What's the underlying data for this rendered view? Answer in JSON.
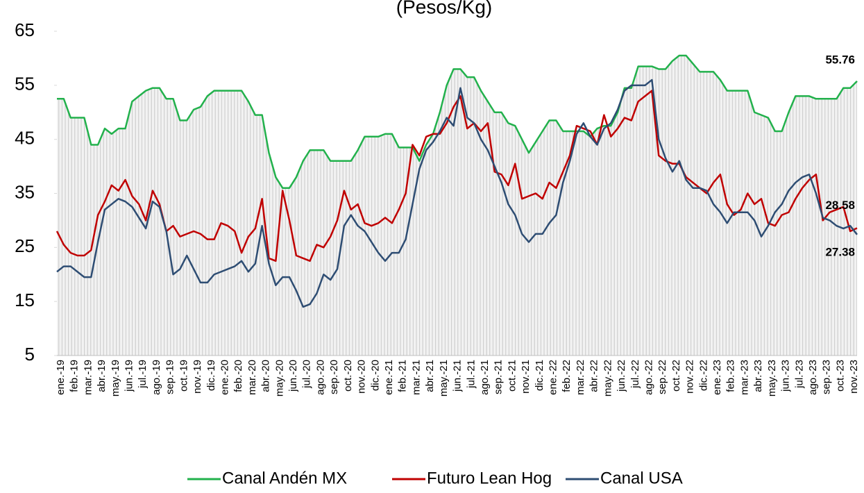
{
  "chart_data": {
    "type": "line",
    "title": "(Pesos/Kg)",
    "categories": [
      "ene.-19",
      null,
      "feb.-19",
      null,
      "mar.-19",
      null,
      "abr.-19",
      null,
      "may.-19",
      null,
      "jun.-19",
      null,
      "jul.-19",
      null,
      "ago.-19",
      null,
      "sep.-19",
      null,
      "oct.-19",
      null,
      "nov.-19",
      null,
      "dic.-19",
      null,
      "ene.-20",
      null,
      "feb.-20",
      null,
      "mar.-20",
      null,
      "abr.-20",
      null,
      "may.-20",
      null,
      "jun.-20",
      null,
      "jul.-20",
      null,
      "ago.-20",
      null,
      "sep.-20",
      null,
      "oct.-20",
      null,
      "nov.-20",
      null,
      "dic.-20",
      null,
      "ene.-21",
      null,
      "feb.-21",
      null,
      "mar.-21",
      null,
      "abr.-21",
      null,
      "may.-21",
      null,
      "jun.-21",
      null,
      "jul.-21",
      null,
      "ago.-21",
      null,
      "sep.-21",
      null,
      "oct.-21",
      null,
      "nov.-21",
      null,
      "dic.-21",
      null,
      "ene.-22",
      null,
      "feb.-22",
      null,
      "mar.-22",
      null,
      "abr.-22",
      null,
      "may.-22",
      null,
      "jun.-22",
      null,
      "jul.-22",
      null,
      "ago.-22",
      null,
      "sep.-22",
      null,
      "oct.-22",
      null,
      "nov.-22",
      null,
      "dic.-22",
      null,
      "ene.-23",
      null,
      "feb.-23",
      null,
      "mar.-23",
      null,
      "abr.-23",
      null,
      "may.-23",
      null,
      "jun.-23",
      null,
      "jul.-23",
      null,
      "ago.-23",
      null,
      "sep.-23",
      null,
      "oct.-23",
      null,
      "nov.-23",
      null
    ],
    "series": [
      {
        "name": "Canal Andén MX",
        "color": "#22b14c",
        "values": [
          52.5,
          52.5,
          49,
          49,
          49,
          44,
          44,
          47,
          46,
          47,
          47,
          52,
          53,
          54,
          54.5,
          54.5,
          52.5,
          52.5,
          48.5,
          48.5,
          50.5,
          51,
          53,
          54,
          54,
          54,
          54,
          54,
          52,
          49.5,
          49.5,
          42.5,
          38,
          36,
          36,
          38,
          41,
          43,
          43,
          43,
          41,
          41,
          41,
          41,
          43,
          45.5,
          45.5,
          45.5,
          46,
          46,
          43.5,
          43.5,
          43.5,
          41,
          44,
          46,
          50,
          55,
          58,
          58,
          56.5,
          56.5,
          54,
          52,
          50,
          50,
          48,
          47.5,
          45,
          42.5,
          44.5,
          46.5,
          48.5,
          48.5,
          46.5,
          46.5,
          46.5,
          46.5,
          45.5,
          47,
          47.5,
          47.5,
          50,
          54.5,
          54.5,
          58.5,
          58.5,
          58.5,
          58,
          58,
          59.5,
          60.5,
          60.5,
          59,
          57.5,
          57.5,
          57.5,
          56,
          54,
          54,
          54,
          54,
          50,
          49.5,
          49,
          46.5,
          46.5,
          50,
          53,
          53,
          53,
          52.5,
          52.5,
          52.5,
          52.5,
          54.5,
          54.5,
          55.76
        ]
      },
      {
        "name": "Futuro Lean Hog",
        "color": "#c00000",
        "values": [
          28,
          25.5,
          24,
          23.5,
          23.5,
          24.5,
          31,
          33.5,
          36.5,
          35.5,
          37.5,
          34.5,
          33,
          30,
          35.5,
          33,
          28,
          29,
          27,
          27.5,
          28,
          27.5,
          26.5,
          26.5,
          29.5,
          29,
          28,
          24,
          27,
          28.5,
          34,
          23,
          22.5,
          35.5,
          30,
          23.5,
          23,
          22.5,
          25.5,
          25,
          27,
          30,
          35.5,
          32,
          33,
          29.5,
          29,
          29.5,
          30.5,
          29.5,
          32,
          35,
          44,
          42,
          45.5,
          46,
          46,
          48,
          51,
          53,
          47,
          48,
          46.5,
          48,
          39,
          38.5,
          36.5,
          40.5,
          34,
          34.5,
          35,
          34,
          37,
          36,
          39,
          42,
          47.5,
          47,
          46.5,
          44,
          49.5,
          45.5,
          47,
          49,
          48.5,
          52,
          53,
          54,
          42,
          41,
          40.5,
          40.5,
          38,
          37,
          36,
          35,
          37,
          38.5,
          33,
          31,
          32,
          35,
          33,
          34,
          29.5,
          29,
          31,
          31.5,
          34,
          36,
          37.5,
          38.5,
          30,
          31.5,
          32,
          32.5,
          28,
          28.58
        ]
      },
      {
        "name": "Canal USA",
        "color": "#2e4d73",
        "values": [
          20.5,
          21.5,
          21.5,
          20.5,
          19.5,
          19.5,
          26,
          32,
          33,
          34,
          33.5,
          32.5,
          30.5,
          28.5,
          33.5,
          32.5,
          28,
          20,
          21,
          23.5,
          21,
          18.5,
          18.5,
          20,
          20.5,
          21,
          21.5,
          22.5,
          20.5,
          22,
          29,
          22,
          18,
          19.5,
          19.5,
          17,
          14,
          14.5,
          16.5,
          20,
          19,
          21,
          29,
          31,
          29,
          28,
          26,
          24,
          22.5,
          24,
          24,
          26.5,
          33,
          39.5,
          43,
          44.5,
          46.5,
          49,
          47.5,
          54.5,
          49,
          48,
          45,
          43,
          40,
          37,
          33,
          31,
          27.5,
          26,
          27.5,
          27.5,
          29.5,
          31,
          37,
          41,
          46,
          48,
          45.5,
          44,
          47,
          48,
          50.5,
          54,
          55,
          55,
          55,
          56,
          45,
          41.5,
          39,
          41,
          37.5,
          36,
          36,
          35.5,
          33,
          31.5,
          29.5,
          31.5,
          31.5,
          31.5,
          30,
          27,
          29,
          31.5,
          33,
          35.5,
          37,
          38,
          38.5,
          35,
          30.5,
          30,
          29,
          28.5,
          29,
          27.38
        ]
      }
    ],
    "ylim": [
      5,
      65
    ],
    "yticks": [
      5,
      15,
      25,
      35,
      45,
      55,
      65
    ],
    "legend": "bottom"
  }
}
